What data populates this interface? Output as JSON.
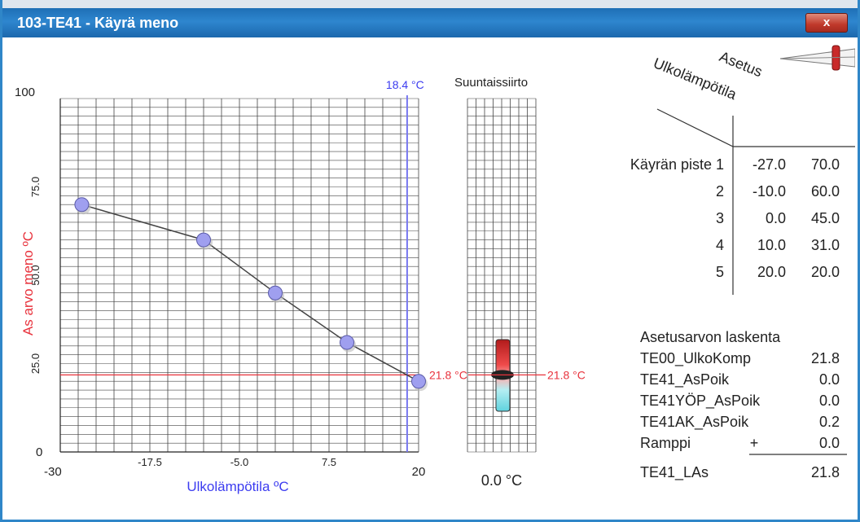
{
  "window": {
    "title": "103-TE41 - Käyrä meno",
    "close_label": "x"
  },
  "chart_data": {
    "type": "line",
    "xlabel": "Ulkolämpötila ºC",
    "ylabel": "As arvo meno ºC",
    "xlim": [
      -30,
      20
    ],
    "ylim": [
      0,
      100
    ],
    "x_ticks": [
      "-30",
      "-17.5",
      "-5.0",
      "7.5",
      "20"
    ],
    "y_ticks": [
      "0",
      "25.0",
      "50.0",
      "75.0",
      "100"
    ],
    "series": [
      {
        "x": [
          -27,
          -10,
          0,
          10,
          20
        ],
        "y": [
          70,
          60,
          45,
          31,
          20
        ]
      }
    ],
    "outdoor_temp_marker": {
      "value": 18.4,
      "label": "18.4 °C"
    },
    "setpoint_marker": {
      "value": 21.8,
      "label": "21.8 °C"
    }
  },
  "shift": {
    "title": "Suuntaissiirto",
    "marker_label": "21.8 °C",
    "value_label": "0.0 °C",
    "value": 0.0
  },
  "table": {
    "col_header_1": "Ulkolämpötila",
    "col_header_2": "Asetus",
    "row_prefix": "Käyrän piste",
    "rows": [
      {
        "n": "1",
        "x": "-27.0",
        "y": "70.0"
      },
      {
        "n": "2",
        "x": "-10.0",
        "y": "60.0"
      },
      {
        "n": "3",
        "x": "0.0",
        "y": "45.0"
      },
      {
        "n": "4",
        "x": "10.0",
        "y": "31.0"
      },
      {
        "n": "5",
        "x": "20.0",
        "y": "20.0"
      }
    ]
  },
  "calc": {
    "title": "Asetusarvon laskenta",
    "rows": [
      {
        "label": "TE00_UlkoKomp",
        "sign": "",
        "value": "21.8"
      },
      {
        "label": "TE41_AsPoik",
        "sign": "",
        "value": "0.0"
      },
      {
        "label": "TE41YÖP_AsPoik",
        "sign": "",
        "value": "0.0"
      },
      {
        "label": "TE41AK_AsPoik",
        "sign": "",
        "value": "0.2"
      },
      {
        "label": "Ramppi",
        "sign": "+",
        "value": "0.0"
      }
    ],
    "total": {
      "label": "TE41_LAs",
      "value": "21.8"
    }
  },
  "colors": {
    "axis_red": "#e8323c",
    "axis_blue": "#3c3cf0",
    "marker_red": "#e8323c",
    "marker_blue": "#7878f0"
  }
}
